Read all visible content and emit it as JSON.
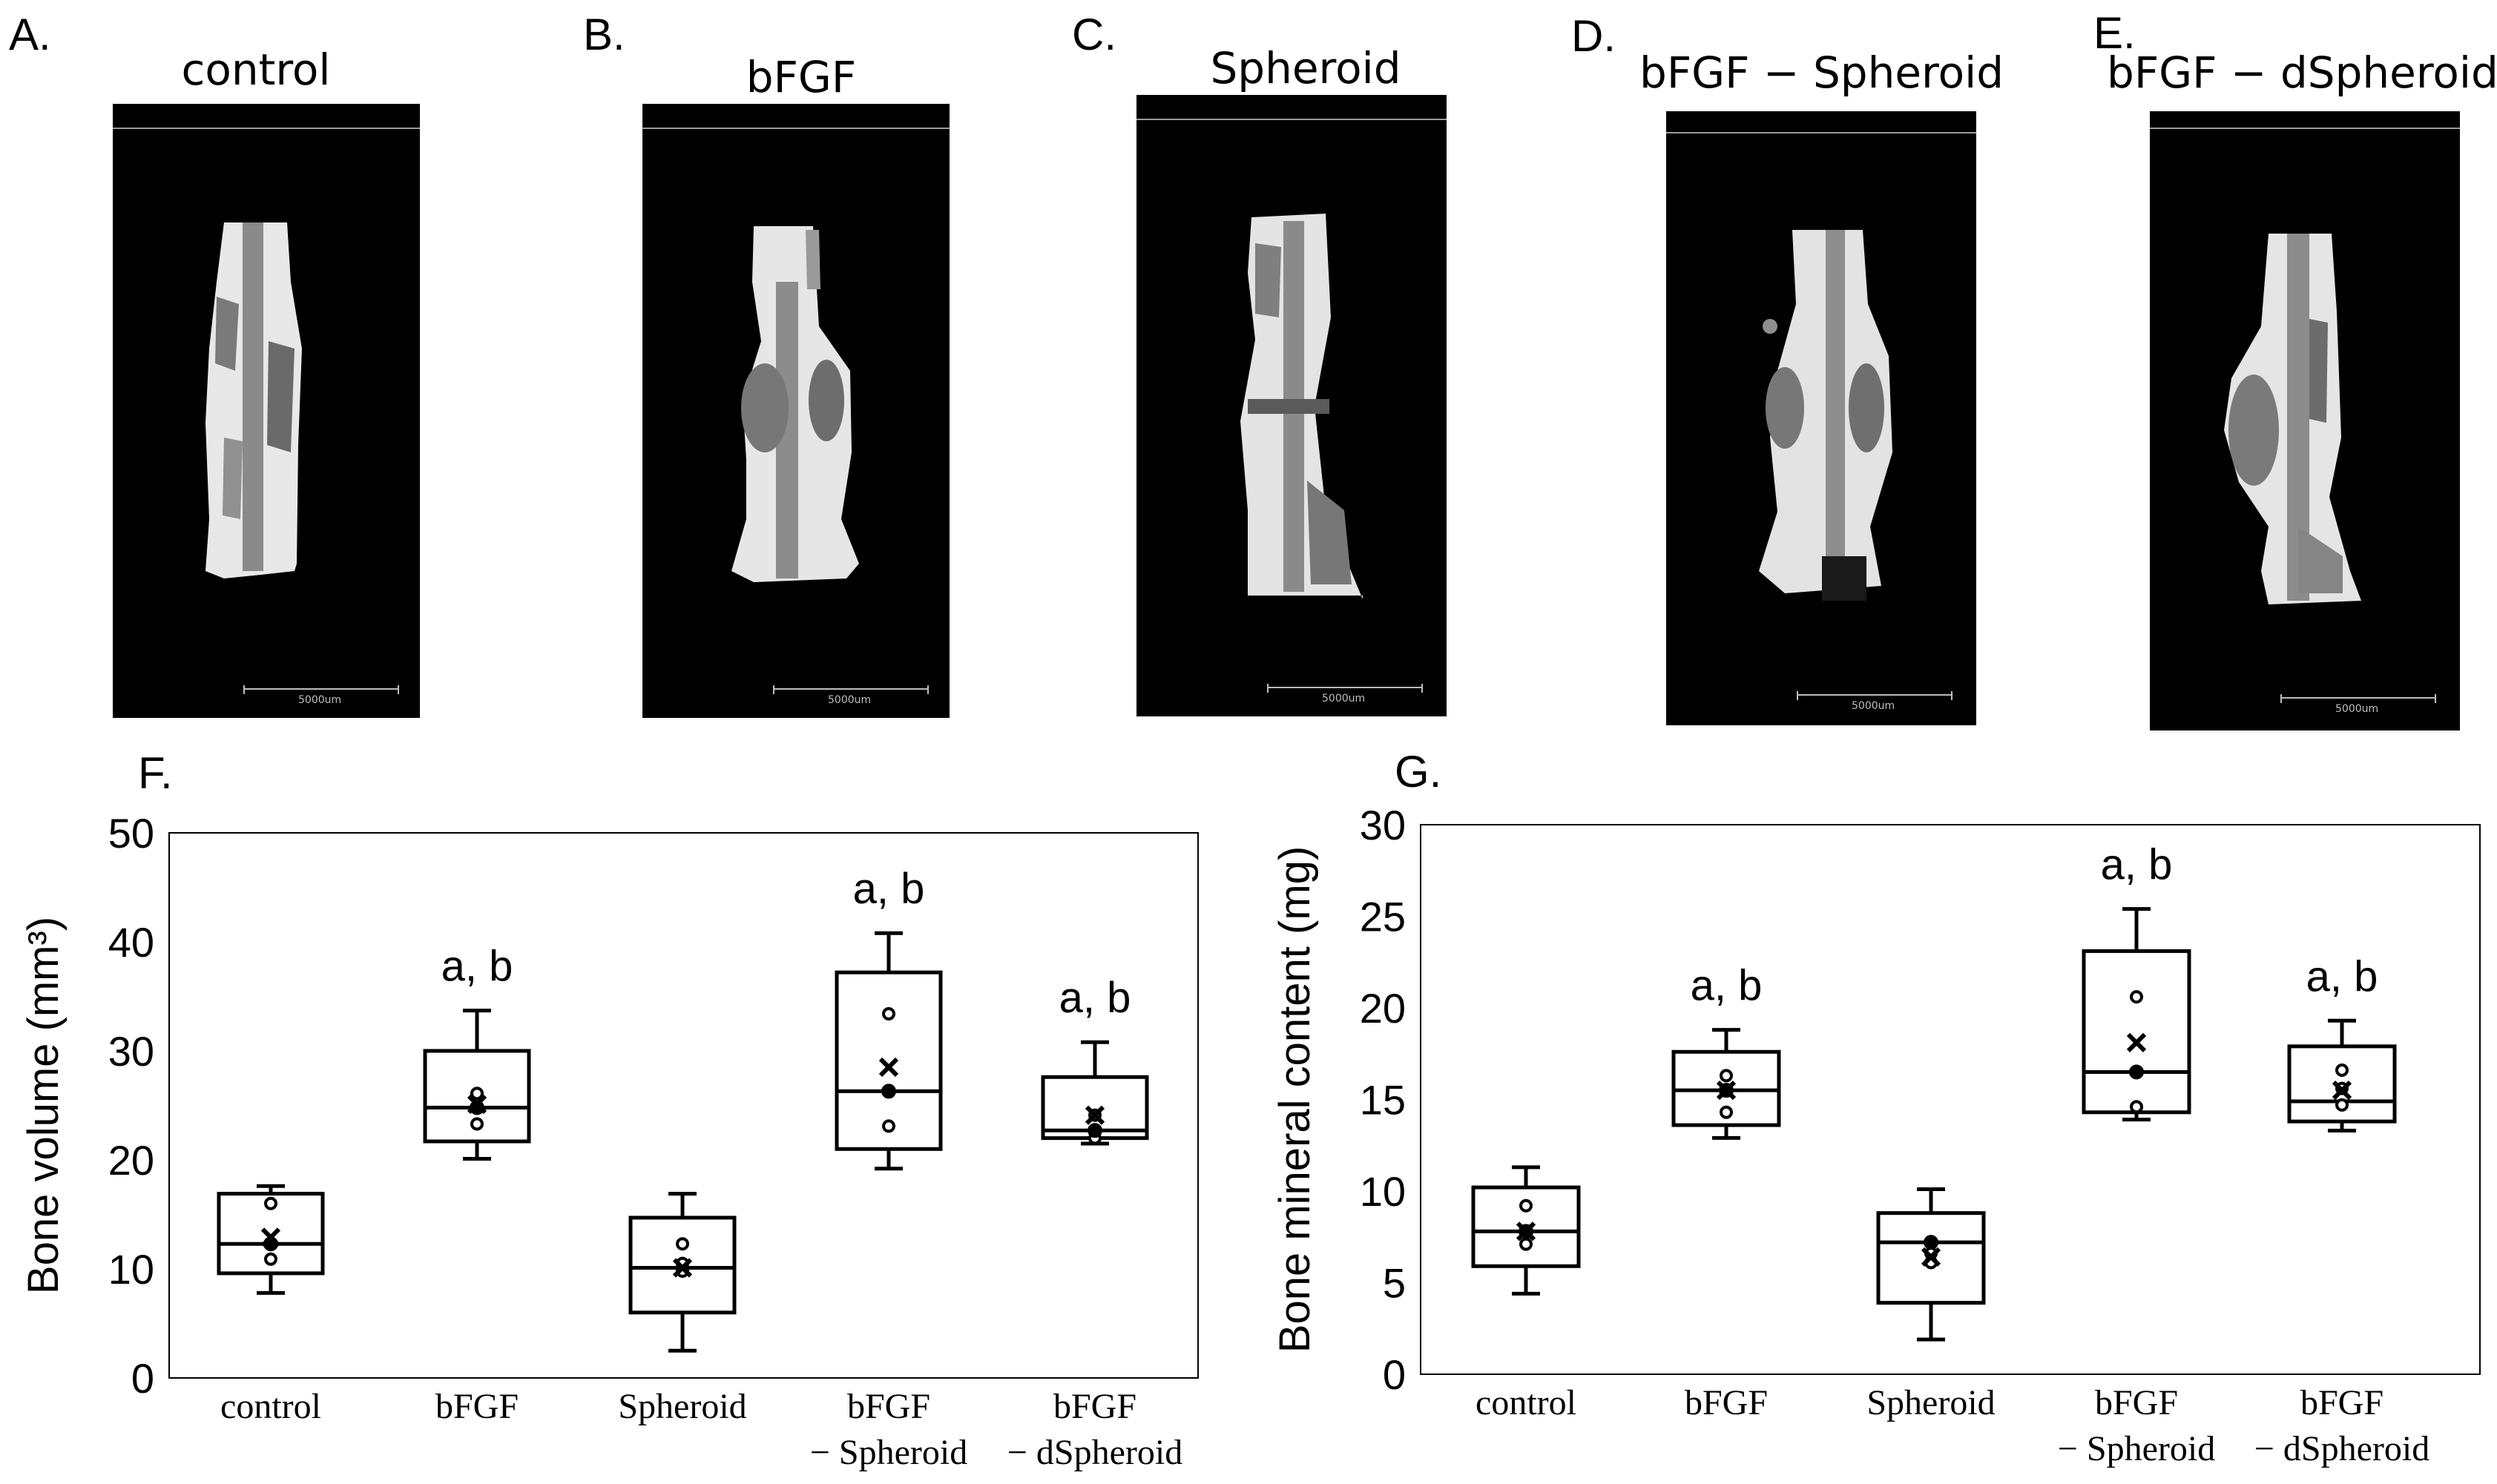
{
  "panels": {
    "images": [
      {
        "letter": "A.",
        "title": "control",
        "scale_label": "5000um"
      },
      {
        "letter": "B.",
        "title": "bFGF",
        "scale_label": "5000um"
      },
      {
        "letter": "C.",
        "title": "Spheroid",
        "scale_label": "5000um"
      },
      {
        "letter": "D.",
        "title": "bFGF − Spheroid",
        "scale_label": "5000um"
      },
      {
        "letter": "E.",
        "title": "bFGF − dSpheroid",
        "scale_label": "5000um"
      }
    ],
    "chart_letters": [
      "F.",
      "G."
    ]
  },
  "chart_data": [
    {
      "type": "box",
      "title": "",
      "ylabel": "Bone volume (mm³)",
      "xlabel": "",
      "ylim": [
        0,
        50
      ],
      "yticks": [
        0,
        10,
        20,
        30,
        40,
        50
      ],
      "grid": false,
      "categories": [
        {
          "label": "control",
          "label2": ""
        },
        {
          "label": "bFGF",
          "label2": ""
        },
        {
          "label": "Spheroid",
          "label2": ""
        },
        {
          "label": "bFGF",
          "label2": "− Spheroid"
        },
        {
          "label": "bFGF",
          "label2": "− dSpheroid"
        }
      ],
      "boxes": [
        {
          "min": 7.8,
          "q1": 9.6,
          "median": 12.3,
          "q3": 16.9,
          "max": 17.6,
          "mean": 12.9,
          "points": [
            10.9,
            12.3,
            16.0
          ],
          "annotation": ""
        },
        {
          "min": 20.1,
          "q1": 21.7,
          "median": 24.8,
          "q3": 30.0,
          "max": 33.7,
          "mean": 25.1,
          "points": [
            23.3,
            24.8,
            26.1
          ],
          "annotation": "a, b"
        },
        {
          "min": 2.5,
          "q1": 6.0,
          "median": 10.1,
          "q3": 14.7,
          "max": 16.9,
          "mean": 10.1,
          "points": [
            9.8,
            10.5,
            12.3
          ],
          "annotation": ""
        },
        {
          "min": 19.2,
          "q1": 21.0,
          "median": 26.3,
          "q3": 37.2,
          "max": 40.8,
          "mean": 28.5,
          "points": [
            23.1,
            26.3,
            33.4
          ],
          "annotation": "a, b"
        },
        {
          "min": 21.5,
          "q1": 22.0,
          "median": 22.7,
          "q3": 27.6,
          "max": 30.8,
          "mean": 24.1,
          "points": [
            22.0,
            22.7,
            24.1
          ],
          "annotation": "a, b"
        }
      ]
    },
    {
      "type": "box",
      "title": "",
      "ylabel": "Bone mineral content (mg)",
      "xlabel": "",
      "ylim": [
        0,
        30
      ],
      "yticks": [
        0,
        5,
        10,
        15,
        20,
        25,
        30
      ],
      "grid": false,
      "categories": [
        {
          "label": "control",
          "label2": ""
        },
        {
          "label": "bFGF",
          "label2": ""
        },
        {
          "label": "Spheroid",
          "label2": ""
        },
        {
          "label": "bFGF",
          "label2": "− Spheroid"
        },
        {
          "label": "bFGF",
          "label2": "− dSpheroid"
        }
      ],
      "boxes": [
        {
          "min": 4.4,
          "q1": 5.9,
          "median": 7.8,
          "q3": 10.2,
          "max": 11.3,
          "mean": 7.8,
          "points": [
            7.1,
            7.8,
            9.2
          ],
          "annotation": ""
        },
        {
          "min": 12.9,
          "q1": 13.6,
          "median": 15.5,
          "q3": 17.6,
          "max": 18.8,
          "mean": 15.5,
          "points": [
            14.3,
            15.5,
            16.3
          ],
          "annotation": "a, b"
        },
        {
          "min": 1.9,
          "q1": 3.9,
          "median": 7.2,
          "q3": 8.8,
          "max": 10.1,
          "mean": 6.4,
          "points": [
            6.1,
            6.6,
            7.2
          ],
          "annotation": ""
        },
        {
          "min": 13.9,
          "q1": 14.3,
          "median": 16.5,
          "q3": 23.1,
          "max": 25.4,
          "mean": 18.1,
          "points": [
            14.6,
            16.5,
            20.6
          ],
          "annotation": "a, b"
        },
        {
          "min": 13.3,
          "q1": 13.8,
          "median": 14.9,
          "q3": 17.9,
          "max": 19.3,
          "mean": 15.5,
          "points": [
            14.7,
            15.6,
            16.6
          ],
          "annotation": "a, b"
        }
      ]
    }
  ]
}
